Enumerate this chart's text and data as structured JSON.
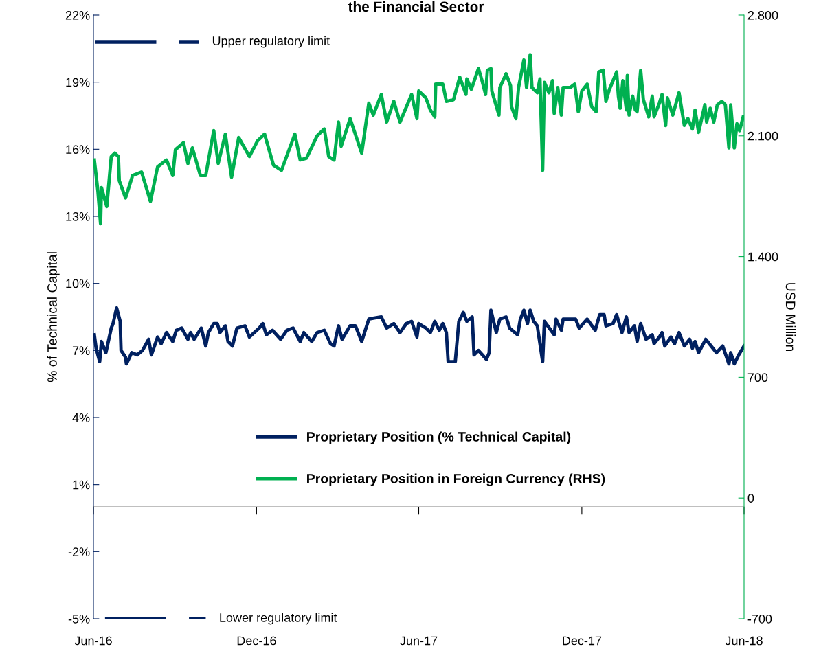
{
  "chart_data": {
    "type": "line",
    "title": "the Financial Sector",
    "ylabel": "% of Technical Capital",
    "y2label": "USD Million",
    "xlim": [
      "2016-06-01",
      "2018-06-01"
    ],
    "xticks": [
      {
        "value": "2016-06-01",
        "label": "Jun-16"
      },
      {
        "value": "2016-12-01",
        "label": "Dec-16"
      },
      {
        "value": "2017-06-01",
        "label": "Jun-17"
      },
      {
        "value": "2017-12-01",
        "label": "Dec-17"
      },
      {
        "value": "2018-06-01",
        "label": "Jun-18"
      }
    ],
    "ylim": [
      -5,
      22
    ],
    "yticks": [
      {
        "value": -5,
        "label": "-5%"
      },
      {
        "value": -2,
        "label": "-2%"
      },
      {
        "value": 1,
        "label": "1%"
      },
      {
        "value": 4,
        "label": "4%"
      },
      {
        "value": 7,
        "label": "7%"
      },
      {
        "value": 10,
        "label": "10%"
      },
      {
        "value": 13,
        "label": "13%"
      },
      {
        "value": 16,
        "label": "16%"
      },
      {
        "value": 19,
        "label": "19%"
      },
      {
        "value": 22,
        "label": "22%"
      }
    ],
    "y2lim": [
      -700,
      2800
    ],
    "y2ticks": [
      {
        "value": -700,
        "label": "-700"
      },
      {
        "value": 0,
        "label": "0"
      },
      {
        "value": 700,
        "label": "700"
      },
      {
        "value": 1400,
        "label": "1.400"
      },
      {
        "value": 2100,
        "label": "2.100"
      },
      {
        "value": 2800,
        "label": "2.800"
      }
    ],
    "grid": false,
    "legend": "bottom",
    "marker": "none",
    "series": [
      {
        "name": "Proprietary Position (% Technical Capital)",
        "color": "#002060",
        "line_style": "solid",
        "x": [
          "2016-06-02",
          "2016-06-04",
          "2016-06-08",
          "2016-06-10",
          "2016-06-15",
          "2016-06-21",
          "2016-06-23",
          "2016-06-27",
          "2016-07-01",
          "2016-07-02",
          "2016-07-07",
          "2016-07-08",
          "2016-07-14",
          "2016-07-20",
          "2016-07-26",
          "2016-08-02",
          "2016-08-05",
          "2016-08-12",
          "2016-08-16",
          "2016-08-22",
          "2016-08-29",
          "2016-09-02",
          "2016-09-08",
          "2016-09-15",
          "2016-09-18",
          "2016-09-22",
          "2016-09-30",
          "2016-10-05",
          "2016-10-08",
          "2016-10-14",
          "2016-10-18",
          "2016-10-21",
          "2016-10-27",
          "2016-10-30",
          "2016-11-04",
          "2016-11-09",
          "2016-11-18",
          "2016-11-23",
          "2016-12-04",
          "2016-12-08",
          "2016-12-12",
          "2016-12-19",
          "2016-12-28",
          "2017-01-04",
          "2017-01-11",
          "2017-01-19",
          "2017-01-23",
          "2017-02-01",
          "2017-02-07",
          "2017-02-15",
          "2017-02-22",
          "2017-02-26",
          "2017-03-03",
          "2017-03-07",
          "2017-03-16",
          "2017-03-22",
          "2017-03-29",
          "2017-04-06",
          "2017-04-12",
          "2017-04-20",
          "2017-04-26",
          "2017-05-04",
          "2017-05-11",
          "2017-05-18",
          "2017-05-24",
          "2017-05-30",
          "2017-06-01",
          "2017-06-09",
          "2017-06-14",
          "2017-06-19",
          "2017-06-24",
          "2017-06-28",
          "2017-07-02",
          "2017-07-04",
          "2017-07-12",
          "2017-07-16",
          "2017-07-21",
          "2017-07-25",
          "2017-07-31",
          "2017-08-02",
          "2017-08-07",
          "2017-08-16",
          "2017-08-19",
          "2017-08-21",
          "2017-08-27",
          "2017-08-31",
          "2017-09-07",
          "2017-09-11",
          "2017-09-20",
          "2017-09-23",
          "2017-09-27",
          "2017-10-01",
          "2017-10-04",
          "2017-10-08",
          "2017-10-12",
          "2017-10-18",
          "2017-10-20",
          "2017-10-31",
          "2017-11-02",
          "2017-11-08",
          "2017-11-10",
          "2017-11-18",
          "2017-11-24",
          "2017-11-28",
          "2017-12-07",
          "2017-12-16",
          "2017-12-21",
          "2017-12-26",
          "2017-12-28",
          "2018-01-05",
          "2018-01-09",
          "2018-01-15",
          "2018-01-20",
          "2018-01-23",
          "2018-01-29",
          "2018-02-01",
          "2018-02-05",
          "2018-02-11",
          "2018-02-18",
          "2018-02-20",
          "2018-02-26",
          "2018-03-01",
          "2018-03-04",
          "2018-03-11",
          "2018-03-15",
          "2018-03-20",
          "2018-03-26",
          "2018-04-01",
          "2018-04-04",
          "2018-04-07",
          "2018-04-11",
          "2018-04-19",
          "2018-04-23",
          "2018-05-01",
          "2018-05-08",
          "2018-05-15",
          "2018-05-17",
          "2018-05-21",
          "2018-05-26",
          "2018-06-01"
        ],
        "values": [
          7.7,
          7.1,
          6.5,
          7.4,
          6.9,
          8.0,
          8.2,
          8.9,
          8.3,
          7.0,
          6.7,
          6.4,
          6.9,
          6.8,
          7.0,
          7.5,
          6.8,
          7.6,
          7.3,
          7.8,
          7.4,
          7.9,
          8.0,
          7.5,
          7.8,
          7.5,
          8.0,
          7.2,
          7.8,
          8.2,
          8.2,
          7.8,
          8.1,
          7.4,
          7.2,
          8.0,
          8.1,
          7.6,
          8.0,
          8.2,
          7.7,
          7.9,
          7.5,
          7.9,
          8.0,
          7.4,
          7.8,
          7.4,
          7.8,
          7.9,
          7.3,
          7.2,
          8.1,
          7.5,
          8.1,
          8.1,
          7.4,
          8.4,
          8.45,
          8.5,
          8.0,
          8.2,
          7.8,
          8.2,
          8.3,
          7.6,
          8.2,
          8.0,
          7.8,
          8.3,
          7.9,
          8.2,
          7.8,
          6.5,
          6.5,
          8.3,
          8.7,
          8.3,
          8.5,
          6.8,
          7.0,
          6.6,
          6.9,
          8.8,
          7.8,
          8.4,
          8.5,
          8.0,
          7.7,
          8.4,
          8.8,
          8.2,
          8.8,
          8.3,
          8.1,
          6.5,
          8.3,
          7.7,
          8.4,
          7.9,
          8.4,
          8.4,
          8.4,
          8.0,
          8.4,
          7.9,
          8.6,
          8.6,
          8.1,
          8.2,
          8.6,
          7.8,
          8.5,
          7.8,
          8.1,
          7.4,
          8.2,
          7.5,
          7.7,
          7.3,
          7.6,
          7.8,
          7.2,
          7.6,
          7.3,
          7.8,
          7.2,
          7.5,
          7.1,
          7.4,
          6.9,
          7.5,
          7.3,
          6.9,
          7.2,
          6.4,
          6.9,
          6.4,
          6.8,
          7.2
        ]
      },
      {
        "name": "Proprietary Position in Foreign Currency (RHS)",
        "color": "#00b050",
        "axis": "y2",
        "line_style": "solid",
        "x": [
          "2016-06-02",
          "2016-06-06",
          "2016-06-09",
          "2016-06-10",
          "2016-06-16",
          "2016-06-21",
          "2016-06-25",
          "2016-06-29",
          "2016-06-30",
          "2016-07-07",
          "2016-07-15",
          "2016-07-25",
          "2016-08-04",
          "2016-08-12",
          "2016-08-22",
          "2016-08-29",
          "2016-09-01",
          "2016-09-10",
          "2016-09-15",
          "2016-09-20",
          "2016-09-29",
          "2016-10-05",
          "2016-10-14",
          "2016-10-19",
          "2016-10-27",
          "2016-11-03",
          "2016-11-11",
          "2016-11-23",
          "2016-12-02",
          "2016-12-10",
          "2016-12-20",
          "2016-12-29",
          "2017-01-13",
          "2017-01-19",
          "2017-01-26",
          "2017-02-07",
          "2017-02-15",
          "2017-02-20",
          "2017-02-26",
          "2017-03-03",
          "2017-03-06",
          "2017-03-16",
          "2017-03-29",
          "2017-04-06",
          "2017-04-11",
          "2017-04-20",
          "2017-04-26",
          "2017-05-04",
          "2017-05-11",
          "2017-05-24",
          "2017-05-30",
          "2017-06-01",
          "2017-06-09",
          "2017-06-14",
          "2017-06-19",
          "2017-06-20",
          "2017-06-28",
          "2017-07-02",
          "2017-07-10",
          "2017-07-17",
          "2017-07-24",
          "2017-07-25",
          "2017-07-30",
          "2017-08-07",
          "2017-08-11",
          "2017-08-15",
          "2017-08-17",
          "2017-08-21",
          "2017-08-22",
          "2017-08-30",
          "2017-08-31",
          "2017-09-07",
          "2017-09-12",
          "2017-09-13",
          "2017-09-18",
          "2017-09-21",
          "2017-09-27",
          "2017-09-30",
          "2017-10-04",
          "2017-10-06",
          "2017-10-12",
          "2017-10-15",
          "2017-10-18",
          "2017-10-20",
          "2017-10-25",
          "2017-10-29",
          "2017-10-31",
          "2017-11-04",
          "2017-11-08",
          "2017-11-10",
          "2017-11-18",
          "2017-11-23",
          "2017-11-27",
          "2017-12-01",
          "2017-12-07",
          "2017-12-12",
          "2017-12-17",
          "2017-12-20",
          "2017-12-25",
          "2017-12-28",
          "2018-01-01",
          "2018-01-09",
          "2018-01-11",
          "2018-01-13",
          "2018-01-16",
          "2018-01-20",
          "2018-01-21",
          "2018-01-23",
          "2018-01-27",
          "2018-01-30",
          "2018-02-01",
          "2018-02-05",
          "2018-02-08",
          "2018-02-14",
          "2018-02-18",
          "2018-02-20",
          "2018-02-26",
          "2018-03-01",
          "2018-03-05",
          "2018-03-07",
          "2018-03-13",
          "2018-03-20",
          "2018-03-26",
          "2018-03-30",
          "2018-04-04",
          "2018-04-07",
          "2018-04-11",
          "2018-04-18",
          "2018-04-20",
          "2018-04-24",
          "2018-04-28",
          "2018-05-02",
          "2018-05-07",
          "2018-05-11",
          "2018-05-15",
          "2018-05-17",
          "2018-05-21",
          "2018-05-24",
          "2018-05-27",
          "2018-05-31"
        ],
        "values": [
          1960,
          1780,
          1590,
          1800,
          1690,
          1980,
          2000,
          1980,
          1840,
          1740,
          1870,
          1890,
          1720,
          1920,
          1960,
          1870,
          2020,
          2060,
          1940,
          2030,
          1870,
          1870,
          2130,
          1940,
          2110,
          1860,
          2090,
          1980,
          2070,
          2110,
          1930,
          1900,
          2110,
          1960,
          1970,
          2100,
          2140,
          1980,
          1960,
          2180,
          2040,
          2200,
          2000,
          2290,
          2220,
          2340,
          2180,
          2300,
          2180,
          2340,
          2200,
          2360,
          2320,
          2250,
          2210,
          2400,
          2400,
          2300,
          2310,
          2440,
          2340,
          2430,
          2370,
          2490,
          2420,
          2340,
          2480,
          2490,
          2360,
          2220,
          2380,
          2460,
          2390,
          2270,
          2200,
          2380,
          2540,
          2380,
          2570,
          2380,
          2350,
          2430,
          1900,
          2410,
          2350,
          2420,
          2230,
          2380,
          2220,
          2380,
          2380,
          2400,
          2240,
          2360,
          2400,
          2270,
          2240,
          2470,
          2480,
          2300,
          2370,
          2470,
          2330,
          2260,
          2420,
          2250,
          2450,
          2220,
          2330,
          2250,
          2240,
          2480,
          2310,
          2210,
          2330,
          2210,
          2290,
          2340,
          2160,
          2320,
          2220,
          2350,
          2160,
          2200,
          2140,
          2250,
          2120,
          2280,
          2180,
          2260,
          2180,
          2280,
          2300,
          2280,
          2030,
          2280,
          2030,
          2170,
          2130,
          2210
        ]
      },
      {
        "name": "Upper regulatory limit",
        "color": "#002060",
        "line_style": "dashed",
        "x": [
          "2016-06-03",
          "2016-09-27"
        ],
        "values": [
          20.8,
          20.8
        ]
      },
      {
        "name": "Lower regulatory limit",
        "color": "#002060",
        "line_style": "dashed",
        "x": [
          "2016-06-14",
          "2016-10-05"
        ],
        "values": [
          -5,
          -5
        ]
      }
    ]
  }
}
